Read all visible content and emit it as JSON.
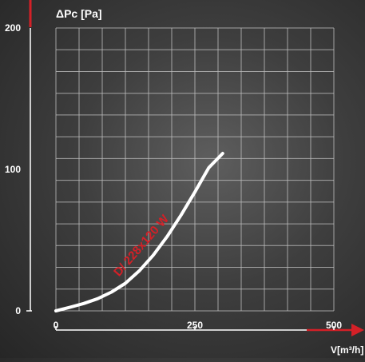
{
  "chart_data": {
    "type": "line",
    "ylabel": "ΔPc [Pa]",
    "xlabel": "V[m³/h]",
    "xlim": [
      0,
      500
    ],
    "ylim": [
      0,
      200
    ],
    "x_ticks": [
      0,
      250,
      500
    ],
    "y_ticks": [
      0,
      100,
      200
    ],
    "grid": true,
    "series": [
      {
        "name": "D/ 228x120 W",
        "x": [
          0,
          25,
          50,
          75,
          100,
          125,
          150,
          175,
          200,
          225,
          250,
          275,
          300
        ],
        "y": [
          0,
          2.5,
          5.2,
          8.6,
          13.3,
          19.5,
          28.3,
          39.3,
          52.5,
          67.6,
          84.0,
          101.2,
          111.3
        ],
        "color": "#ffffff",
        "label_color": "#d42027"
      }
    ],
    "grid_color": "#bdbdbd",
    "axis_color": "#ffffff",
    "arrow_color": "#d42027"
  }
}
